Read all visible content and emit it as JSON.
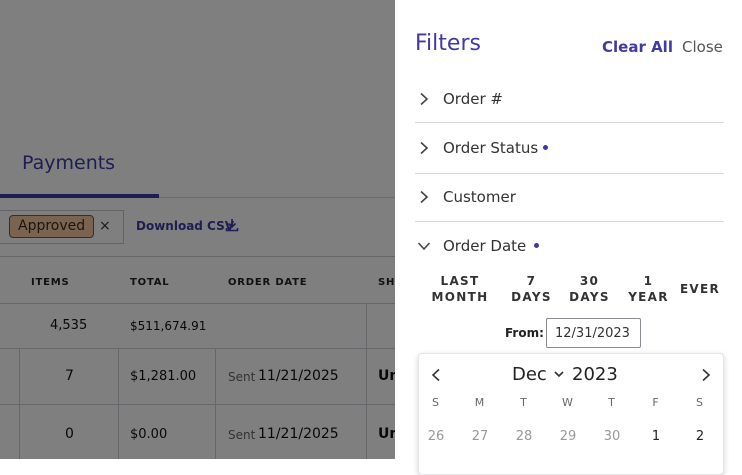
{
  "page": {
    "tab_label": "Payments",
    "filter_chip": "Approved",
    "chip_close": "×",
    "download_label": "Download CSV"
  },
  "table": {
    "columns": [
      "ITEMS",
      "TOTAL",
      "ORDER DATE",
      "SHI"
    ],
    "summary": {
      "items": "4,535",
      "total": "$511,674.91"
    },
    "rows": [
      {
        "items": "7",
        "total": "$1,281.00",
        "status": "Sent",
        "date": "11/21/2025",
        "ship": "Un"
      },
      {
        "items": "0",
        "total": "$0.00",
        "status": "Sent",
        "date": "11/21/2025",
        "ship": "Un"
      }
    ]
  },
  "drawer": {
    "title": "Filters",
    "clear_all": "Clear All",
    "close": "Close",
    "sections": [
      {
        "label": "Order #",
        "expanded": false,
        "active": false
      },
      {
        "label": "Order Status",
        "expanded": false,
        "active": true
      },
      {
        "label": "Customer",
        "expanded": false,
        "active": false
      },
      {
        "label": "Order Date",
        "expanded": true,
        "active": true
      }
    ],
    "ranges": [
      {
        "line1": "LAST",
        "line2": "MONTH"
      },
      {
        "line1": "7",
        "line2": "DAYS"
      },
      {
        "line1": "30",
        "line2": "DAYS"
      },
      {
        "line1": "1",
        "line2": "YEAR"
      },
      {
        "line1": "EVER",
        "line2": ""
      }
    ],
    "from_label": "From:",
    "from_value": "12/31/2023"
  },
  "calendar": {
    "month": "Dec",
    "year": "2023",
    "weekdays": [
      "S",
      "M",
      "T",
      "W",
      "T",
      "F",
      "S"
    ],
    "first_row": [
      {
        "day": "26",
        "muted": true
      },
      {
        "day": "27",
        "muted": true
      },
      {
        "day": "28",
        "muted": true
      },
      {
        "day": "29",
        "muted": true
      },
      {
        "day": "30",
        "muted": true
      },
      {
        "day": "1",
        "muted": false
      },
      {
        "day": "2",
        "muted": false
      }
    ]
  },
  "colors": {
    "accent": "#3f3aa5",
    "overlay": "rgba(0,0,0,0.5)",
    "chip_bg": "#f5c9a3"
  }
}
